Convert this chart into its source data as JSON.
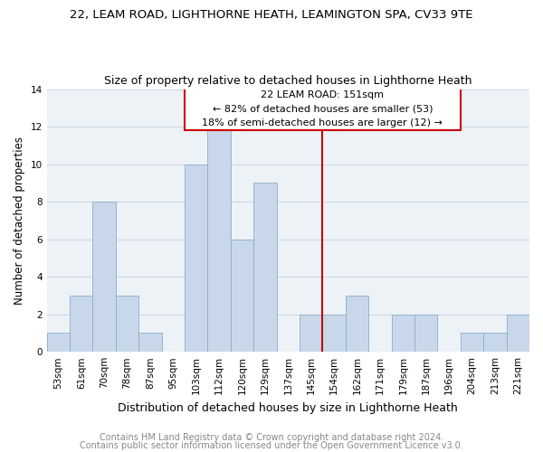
{
  "title1": "22, LEAM ROAD, LIGHTHORNE HEATH, LEAMINGTON SPA, CV33 9TE",
  "title2": "Size of property relative to detached houses in Lighthorne Heath",
  "xlabel": "Distribution of detached houses by size in Lighthorne Heath",
  "ylabel": "Number of detached properties",
  "categories": [
    "53sqm",
    "61sqm",
    "70sqm",
    "78sqm",
    "87sqm",
    "95sqm",
    "103sqm",
    "112sqm",
    "120sqm",
    "129sqm",
    "137sqm",
    "145sqm",
    "154sqm",
    "162sqm",
    "171sqm",
    "179sqm",
    "187sqm",
    "196sqm",
    "204sqm",
    "213sqm",
    "221sqm"
  ],
  "values": [
    1,
    3,
    8,
    3,
    1,
    0,
    10,
    12,
    6,
    9,
    0,
    2,
    2,
    3,
    0,
    2,
    2,
    0,
    1,
    1,
    2
  ],
  "bar_color": "#c8d8ea",
  "bar_edge_color": "#8aaec8",
  "subject_line_color": "#cc0000",
  "annotation_box_color": "#cc0000",
  "ylim": [
    0,
    14
  ],
  "yticks": [
    0,
    2,
    4,
    6,
    8,
    10,
    12,
    14
  ],
  "grid_color": "#ccd8e4",
  "background_color": "#edf2f7",
  "footer_text1": "Contains HM Land Registry data © Crown copyright and database right 2024.",
  "footer_text2": "Contains public sector information licensed under the Open Government Licence v3.0.",
  "title1_fontsize": 9.5,
  "title2_fontsize": 9,
  "xlabel_fontsize": 9,
  "ylabel_fontsize": 8.5,
  "tick_fontsize": 7.5,
  "footer_fontsize": 7,
  "ann_line1": "22 LEAM ROAD: 151sqm",
  "ann_line2": "← 82% of detached houses are smaller (53)",
  "ann_line3": "18% of semi-detached houses are larger (12) →"
}
